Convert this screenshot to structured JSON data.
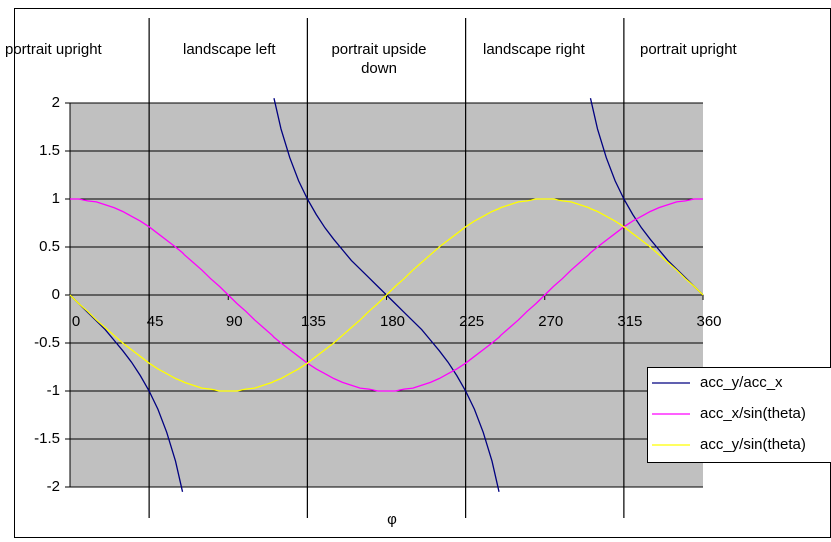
{
  "chart_data": {
    "type": "line",
    "x_label": "φ",
    "x": [
      0,
      5,
      10,
      15,
      20,
      25,
      30,
      35,
      40,
      45,
      50,
      55,
      60,
      64,
      65,
      70,
      75,
      80,
      85,
      90,
      95,
      100,
      105,
      110,
      115,
      116,
      120,
      125,
      130,
      135,
      140,
      145,
      150,
      155,
      160,
      165,
      170,
      175,
      180,
      185,
      190,
      195,
      200,
      205,
      210,
      215,
      220,
      225,
      230,
      235,
      240,
      244,
      245,
      250,
      255,
      260,
      265,
      270,
      275,
      280,
      285,
      290,
      295,
      296,
      300,
      305,
      310,
      315,
      320,
      325,
      330,
      335,
      340,
      345,
      350,
      355,
      360
    ],
    "series": [
      {
        "name": "acc_y/acc_x",
        "color": "#000080",
        "values": [
          0,
          -0.09,
          -0.18,
          -0.27,
          -0.36,
          -0.47,
          -0.58,
          -0.7,
          -0.84,
          -1,
          -1.19,
          -1.43,
          -1.73,
          -2.05,
          null,
          null,
          null,
          null,
          null,
          null,
          null,
          null,
          null,
          null,
          null,
          2.05,
          1.73,
          1.43,
          1.19,
          1,
          0.84,
          0.7,
          0.58,
          0.47,
          0.36,
          0.27,
          0.18,
          0.09,
          0,
          -0.09,
          -0.18,
          -0.27,
          -0.36,
          -0.47,
          -0.58,
          -0.7,
          -0.84,
          -1,
          -1.19,
          -1.43,
          -1.73,
          -2.05,
          null,
          null,
          null,
          null,
          null,
          null,
          null,
          null,
          null,
          null,
          null,
          2.05,
          1.73,
          1.43,
          1.19,
          1,
          0.84,
          0.7,
          0.58,
          0.47,
          0.36,
          0.27,
          0.18,
          0.09,
          0
        ]
      },
      {
        "name": "acc_x/sin(theta)",
        "color": "#ff00ff",
        "values": [
          1,
          1,
          0.98,
          0.97,
          0.94,
          0.91,
          0.87,
          0.82,
          0.77,
          0.71,
          0.64,
          0.57,
          0.5,
          0.44,
          0.42,
          0.34,
          0.26,
          0.17,
          0.09,
          0,
          -0.09,
          -0.17,
          -0.26,
          -0.34,
          -0.42,
          -0.44,
          -0.5,
          -0.57,
          -0.64,
          -0.71,
          -0.77,
          -0.82,
          -0.87,
          -0.91,
          -0.94,
          -0.97,
          -0.98,
          -1,
          -1,
          -1,
          -0.98,
          -0.97,
          -0.94,
          -0.91,
          -0.87,
          -0.82,
          -0.77,
          -0.71,
          -0.64,
          -0.57,
          -0.5,
          -0.44,
          -0.42,
          -0.34,
          -0.26,
          -0.17,
          -0.09,
          0,
          0.09,
          0.17,
          0.26,
          0.34,
          0.42,
          0.44,
          0.5,
          0.57,
          0.64,
          0.71,
          0.77,
          0.82,
          0.87,
          0.91,
          0.94,
          0.97,
          0.98,
          1,
          1
        ]
      },
      {
        "name": "acc_y/sin(theta)",
        "color": "#ffff00",
        "values": [
          0,
          -0.09,
          -0.17,
          -0.26,
          -0.34,
          -0.42,
          -0.5,
          -0.57,
          -0.64,
          -0.71,
          -0.77,
          -0.82,
          -0.87,
          -0.9,
          -0.91,
          -0.94,
          -0.97,
          -0.98,
          -1,
          -1,
          -1,
          -0.98,
          -0.97,
          -0.94,
          -0.91,
          -0.9,
          -0.87,
          -0.82,
          -0.77,
          -0.71,
          -0.64,
          -0.57,
          -0.5,
          -0.42,
          -0.34,
          -0.26,
          -0.17,
          -0.09,
          0,
          0.09,
          0.17,
          0.26,
          0.34,
          0.42,
          0.5,
          0.57,
          0.64,
          0.71,
          0.77,
          0.82,
          0.87,
          0.9,
          0.91,
          0.94,
          0.97,
          0.98,
          1,
          1,
          1,
          0.98,
          0.97,
          0.94,
          0.91,
          0.9,
          0.87,
          0.82,
          0.77,
          0.71,
          0.64,
          0.57,
          0.5,
          0.42,
          0.34,
          0.26,
          0.17,
          0.09,
          0
        ]
      }
    ],
    "xlim": [
      0,
      360
    ],
    "xticks": [
      0,
      45,
      90,
      135,
      180,
      225,
      270,
      315,
      360
    ],
    "ylim": [
      -2,
      2
    ],
    "yticks": [
      -2,
      -1.5,
      -1,
      -0.5,
      0,
      0.5,
      1,
      1.5,
      2
    ],
    "grid": true,
    "plot_background": "#c0c0c0",
    "legend": "lower right",
    "boundaries": [
      45,
      135,
      225,
      315
    ],
    "regions": [
      "portrait upright",
      "landscape left",
      "portrait upside down",
      "landscape right",
      "portrait upright"
    ]
  }
}
